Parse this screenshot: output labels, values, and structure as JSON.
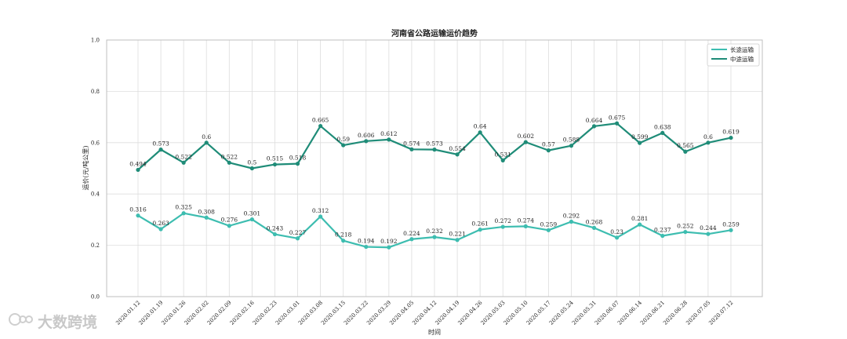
{
  "chart_data": {
    "type": "line",
    "title": "河南省公路运输运价趋势",
    "xlabel": "时间",
    "ylabel": "运价(元/吨公里)",
    "ylim": [
      0.0,
      1.0
    ],
    "yticks": [
      "0.0",
      "0.2",
      "0.4",
      "0.6",
      "0.8",
      "1.0"
    ],
    "grid": true,
    "legend_position": "top-right",
    "categories": [
      "2020.01.12",
      "2020.01.19",
      "2020.01.26",
      "2020.02.02",
      "2020.02.09",
      "2020.02.16",
      "2020.02.23",
      "2020.03.01",
      "2020.03.08",
      "2020.03.15",
      "2020.03.22",
      "2020.03.29",
      "2020.04.05",
      "2020.04.12",
      "2020.04.19",
      "2020.04.26",
      "2020.05.03",
      "2020.05.10",
      "2020.05.17",
      "2020.05.24",
      "2020.05.31",
      "2020.06.07",
      "2020.06.14",
      "2020.06.21",
      "2020.06.28",
      "2020.07.05",
      "2020.07.12"
    ],
    "series": [
      {
        "name": "长途运输",
        "color": "#3dbdb0",
        "values": [
          0.316,
          0.263,
          0.325,
          0.308,
          0.276,
          0.301,
          0.243,
          0.227,
          0.312,
          0.218,
          0.194,
          0.192,
          0.224,
          0.232,
          0.221,
          0.261,
          0.272,
          0.274,
          0.259,
          0.292,
          0.268,
          0.23,
          0.281,
          0.237,
          0.252,
          0.244,
          0.259
        ]
      },
      {
        "name": "中途运输",
        "color": "#1f8c78",
        "values": [
          0.494,
          0.573,
          0.522,
          0.6,
          0.522,
          0.5,
          0.515,
          0.518,
          0.665,
          0.59,
          0.606,
          0.612,
          0.574,
          0.573,
          0.554,
          0.64,
          0.531,
          0.602,
          0.57,
          0.588,
          0.664,
          0.675,
          0.599,
          0.638,
          0.565,
          0.6,
          0.619
        ]
      }
    ]
  },
  "watermark": {
    "text": "大数跨境",
    "icon": "logo-icon"
  }
}
